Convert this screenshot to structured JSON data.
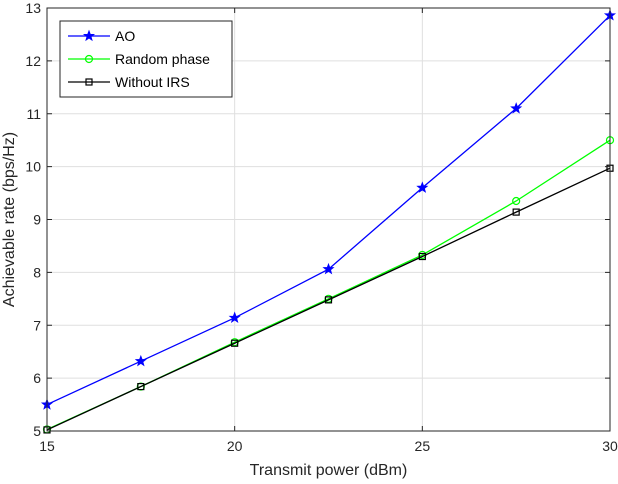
{
  "chart_data": {
    "type": "line",
    "xlabel": "Transmit power (dBm)",
    "ylabel": "Achievable rate (bps/Hz)",
    "xlim": [
      15,
      30
    ],
    "ylim": [
      5,
      13
    ],
    "xticks": [
      15,
      20,
      25,
      30
    ],
    "yticks": [
      5,
      6,
      7,
      8,
      9,
      10,
      11,
      12,
      13
    ],
    "grid": true,
    "legend_position": "top-left",
    "x": [
      15,
      17.5,
      20,
      22.5,
      25,
      27.5,
      30
    ],
    "series": [
      {
        "name": "AO",
        "color": "#0000ff",
        "marker": "star",
        "values": [
          5.5,
          6.32,
          7.14,
          8.06,
          9.6,
          11.1,
          12.86
        ]
      },
      {
        "name": "Random phase",
        "color": "#00ff00",
        "marker": "circle",
        "values": [
          5.03,
          5.84,
          6.68,
          7.5,
          8.33,
          9.35,
          10.5
        ]
      },
      {
        "name": "Without IRS",
        "color": "#000000",
        "marker": "square",
        "values": [
          5.02,
          5.84,
          6.66,
          7.48,
          8.3,
          9.14,
          9.97
        ]
      }
    ]
  }
}
